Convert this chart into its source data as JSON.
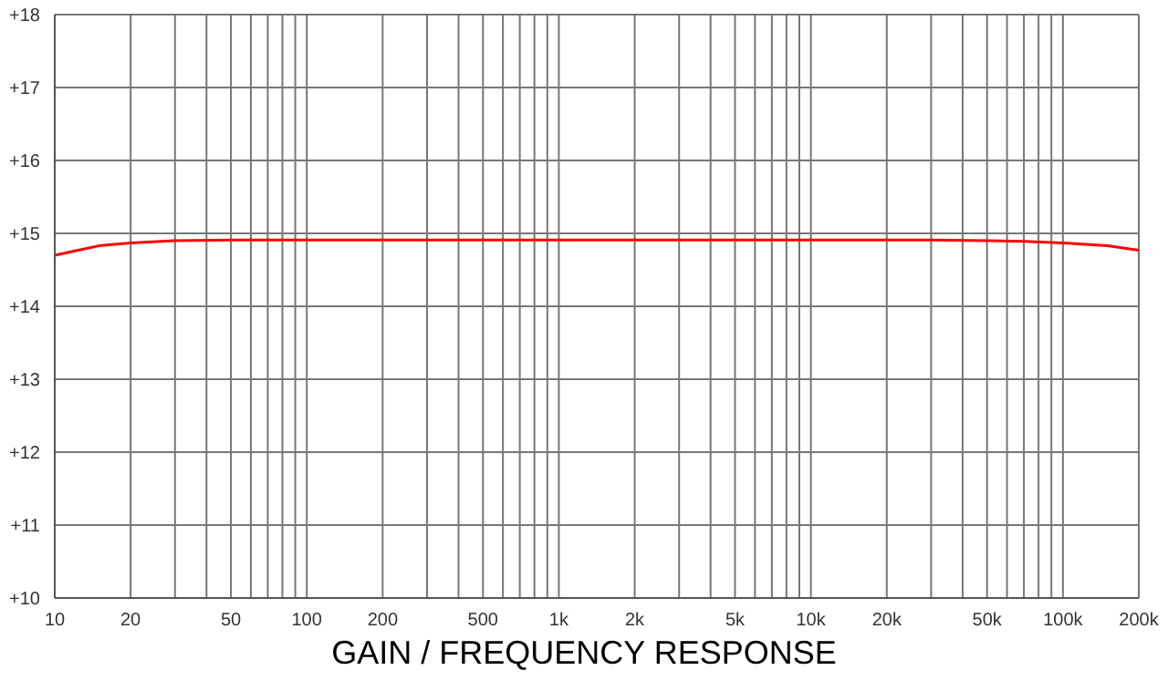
{
  "chart_data": {
    "type": "line",
    "title": "GAIN / FREQUENCY RESPONSE",
    "x": [
      10,
      12,
      15,
      20,
      30,
      50,
      100,
      1000,
      10000,
      30000,
      50000,
      70000,
      100000,
      150000,
      200000
    ],
    "series": [
      {
        "color": "#ff0000",
        "values": [
          14.7,
          14.76,
          14.83,
          14.87,
          14.9,
          14.91,
          14.91,
          14.91,
          14.91,
          14.91,
          14.9,
          14.89,
          14.87,
          14.83,
          14.77
        ]
      }
    ],
    "log": "x",
    "xlim": [
      10,
      200000
    ],
    "ylim": [
      10,
      18
    ],
    "xticks": [
      10,
      20,
      {
        "value": 30,
        "label": null
      },
      {
        "value": 40,
        "label": null
      },
      50,
      {
        "value": 60,
        "label": null
      },
      {
        "value": 70,
        "label": null
      },
      {
        "value": 80,
        "label": null
      },
      {
        "value": 90,
        "label": null
      },
      100,
      200,
      {
        "value": 300,
        "label": null
      },
      {
        "value": 400,
        "label": null
      },
      500,
      {
        "value": 600,
        "label": null
      },
      {
        "value": 700,
        "label": null
      },
      {
        "value": 800,
        "label": null
      },
      {
        "value": 900,
        "label": null
      },
      {
        "value": 1000,
        "label": "1k"
      },
      {
        "value": 2000,
        "label": "2k"
      },
      {
        "value": 3000,
        "label": null
      },
      {
        "value": 4000,
        "label": null
      },
      {
        "value": 5000,
        "label": "5k"
      },
      {
        "value": 6000,
        "label": null
      },
      {
        "value": 7000,
        "label": null
      },
      {
        "value": 8000,
        "label": null
      },
      {
        "value": 9000,
        "label": null
      },
      {
        "value": 10000,
        "label": "10k"
      },
      {
        "value": 20000,
        "label": "20k"
      },
      {
        "value": 30000,
        "label": null
      },
      {
        "value": 40000,
        "label": null
      },
      {
        "value": 50000,
        "label": "50k"
      },
      {
        "value": 60000,
        "label": null
      },
      {
        "value": 70000,
        "label": null
      },
      {
        "value": 80000,
        "label": null
      },
      {
        "value": 90000,
        "label": null
      },
      {
        "value": 100000,
        "label": "100k"
      },
      {
        "value": 200000,
        "label": "200k"
      }
    ],
    "yticks": [
      {
        "value": 10,
        "label": "+10"
      },
      {
        "value": 11,
        "label": "+11"
      },
      {
        "value": 12,
        "label": "+12"
      },
      {
        "value": 13,
        "label": "+13"
      },
      {
        "value": 14,
        "label": "+14"
      },
      {
        "value": 15,
        "label": "+15"
      },
      {
        "value": 16,
        "label": "+16"
      },
      {
        "value": 17,
        "label": "+17"
      },
      {
        "value": 18,
        "label": "+18"
      }
    ],
    "grid": true,
    "marker": "none",
    "line_style": "solid",
    "legend": false
  }
}
